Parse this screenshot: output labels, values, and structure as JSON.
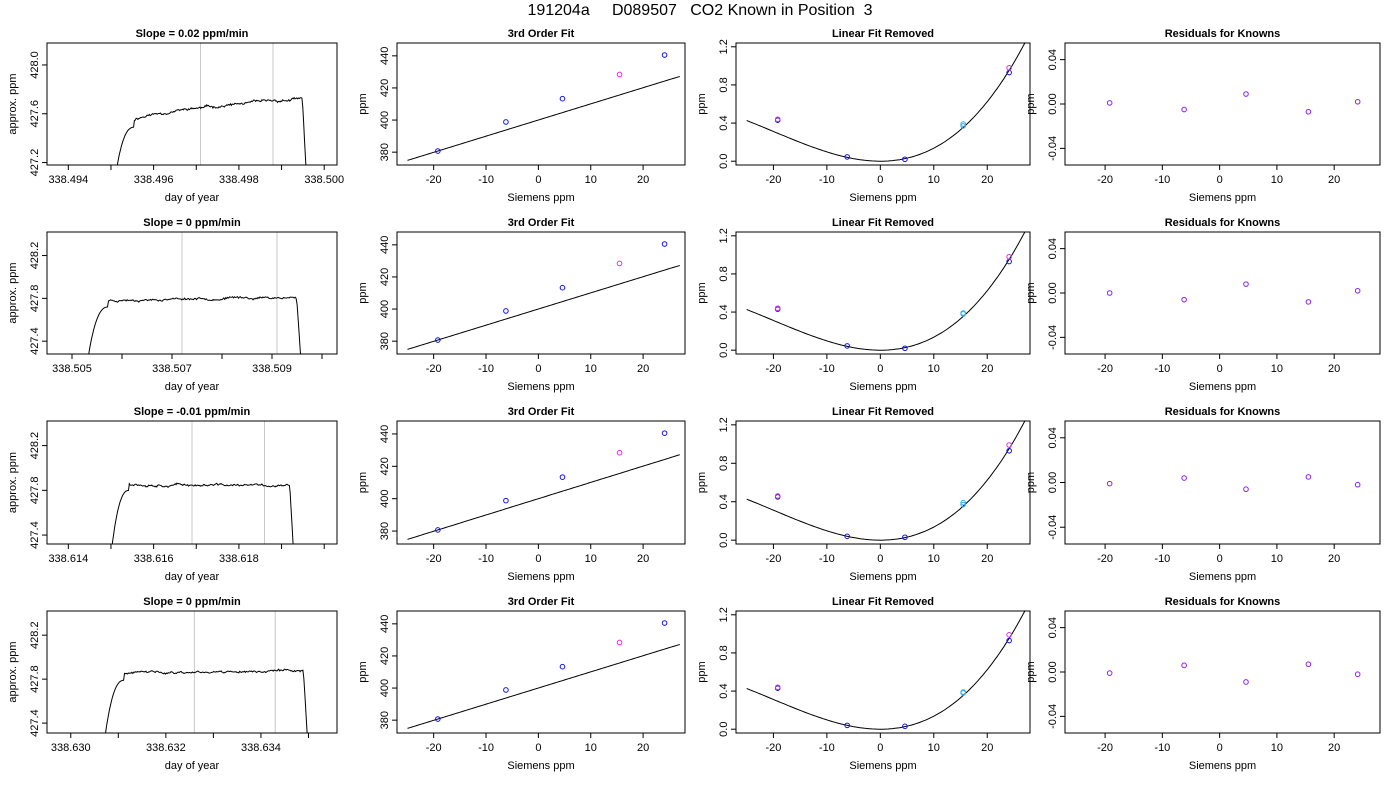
{
  "page": {
    "title": "191204a     D089507   CO2 Known in Position  3"
  },
  "colors": {
    "axis": "#000000",
    "line": "#000000",
    "vline": "#c8c8c8",
    "blue": "#1414e6",
    "magenta": "#dd33dd",
    "cyan": "#33aaee",
    "purple": "#8822ee"
  },
  "chart_data": [
    {
      "type": "line",
      "row": 0,
      "col": 0,
      "title": "Slope =  0.02  ppm/min",
      "xlabel": "day of year",
      "ylabel": "approx. ppm",
      "xlim": [
        338.4935,
        338.5003
      ],
      "ylim": [
        427.18,
        428.18
      ],
      "xticks": [
        338.494,
        338.495,
        338.496,
        338.497,
        338.498,
        338.499,
        338.5
      ],
      "xtick_labels": [
        "338.494",
        "",
        "338.496",
        "",
        "338.498",
        "",
        "338.500"
      ],
      "yticks": [
        427.2,
        427.6,
        428.0
      ],
      "ytick_labels": [
        "427.2",
        "427.6",
        "428.0"
      ],
      "vlines": [
        338.4971,
        338.4988
      ],
      "trace": {
        "x0": 338.4951,
        "x1": 338.4996,
        "plateau": 427.55,
        "end": 427.72,
        "noise": 0.012,
        "seed": 11
      }
    },
    {
      "type": "line",
      "row": 1,
      "col": 0,
      "title": "Slope =  0  ppm/min",
      "xlabel": "day of year",
      "ylabel": "approx. ppm",
      "xlim": [
        338.5045,
        338.5103
      ],
      "ylim": [
        427.28,
        428.42
      ],
      "xticks": [
        338.505,
        338.506,
        338.507,
        338.508,
        338.509,
        338.51
      ],
      "xtick_labels": [
        "338.505",
        "",
        "338.507",
        "",
        "338.509",
        ""
      ],
      "yticks": [
        427.4,
        427.8,
        428.2
      ],
      "ytick_labels": [
        "427.4",
        "427.8",
        "428.2"
      ],
      "vlines": [
        338.5072,
        338.5091
      ],
      "trace": {
        "x0": 338.5053,
        "x1": 338.5096,
        "plateau": 427.78,
        "end": 427.81,
        "noise": 0.012,
        "seed": 23
      }
    },
    {
      "type": "line",
      "row": 2,
      "col": 0,
      "title": "Slope =  -0.01  ppm/min",
      "xlabel": "day of year",
      "ylabel": "approx. ppm",
      "xlim": [
        338.6135,
        338.6203
      ],
      "ylim": [
        427.32,
        428.42
      ],
      "xticks": [
        338.614,
        338.615,
        338.616,
        338.617,
        338.618,
        338.619,
        338.62
      ],
      "xtick_labels": [
        "338.614",
        "",
        "338.616",
        "",
        "338.618",
        "",
        ""
      ],
      "yticks": [
        427.4,
        427.8,
        428.2
      ],
      "ytick_labels": [
        "427.4",
        "427.8",
        "428.2"
      ],
      "vlines": [
        338.6169,
        338.6186
      ],
      "trace": {
        "x0": 338.615,
        "x1": 338.6193,
        "plateau": 427.86,
        "end": 427.84,
        "noise": 0.012,
        "seed": 37
      }
    },
    {
      "type": "line",
      "row": 3,
      "col": 0,
      "title": "Slope =  0  ppm/min",
      "xlabel": "day of year",
      "ylabel": "approx. ppm",
      "xlim": [
        338.6295,
        338.6356
      ],
      "ylim": [
        427.31,
        428.42
      ],
      "xticks": [
        338.63,
        338.631,
        338.632,
        338.633,
        338.634,
        338.635
      ],
      "xtick_labels": [
        "338.630",
        "",
        "338.632",
        "",
        "338.634",
        ""
      ],
      "yticks": [
        427.4,
        427.8,
        428.2
      ],
      "ytick_labels": [
        "427.4",
        "427.8",
        "428.2"
      ],
      "vlines": [
        338.6326,
        338.6343
      ],
      "trace": {
        "x0": 338.6307,
        "x1": 338.635,
        "plateau": 427.85,
        "end": 427.88,
        "noise": 0.012,
        "seed": 41
      }
    },
    {
      "type": "scatter",
      "row": 0,
      "col": 1,
      "title": "3rd Order Fit",
      "xlabel": "Siemens ppm",
      "ylabel": "ppm",
      "xlim": [
        -27,
        28
      ],
      "ylim": [
        372,
        448
      ],
      "xticks": [
        -20,
        -10,
        0,
        10,
        20
      ],
      "yticks": [
        380,
        400,
        420,
        440
      ],
      "fit": {
        "kind": "linear",
        "slope": 1.006,
        "intercept": 400.0
      },
      "points": [
        [
          -19.2,
          380.7,
          "blue"
        ],
        [
          -6.2,
          398.8,
          "blue"
        ],
        [
          4.6,
          413.3,
          "blue"
        ],
        [
          15.5,
          428.4,
          "magenta"
        ],
        [
          24.1,
          440.5,
          "blue"
        ]
      ]
    },
    {
      "type": "scatter",
      "row": 1,
      "col": 1,
      "title": "3rd Order Fit",
      "xlabel": "Siemens ppm",
      "ylabel": "ppm",
      "xlim": [
        -27,
        28
      ],
      "ylim": [
        372,
        448
      ],
      "xticks": [
        -20,
        -10,
        0,
        10,
        20
      ],
      "yticks": [
        380,
        400,
        420,
        440
      ],
      "fit": {
        "kind": "linear",
        "slope": 1.006,
        "intercept": 400.0
      },
      "points": [
        [
          -19.2,
          380.7,
          "blue"
        ],
        [
          -6.2,
          398.8,
          "blue"
        ],
        [
          4.6,
          413.3,
          "blue"
        ],
        [
          15.5,
          428.4,
          "magenta"
        ],
        [
          24.1,
          440.5,
          "blue"
        ]
      ]
    },
    {
      "type": "scatter",
      "row": 2,
      "col": 1,
      "title": "3rd Order Fit",
      "xlabel": "Siemens ppm",
      "ylabel": "ppm",
      "xlim": [
        -27,
        28
      ],
      "ylim": [
        372,
        448
      ],
      "xticks": [
        -20,
        -10,
        0,
        10,
        20
      ],
      "yticks": [
        380,
        400,
        420,
        440
      ],
      "fit": {
        "kind": "linear",
        "slope": 1.006,
        "intercept": 400.0
      },
      "points": [
        [
          -19.2,
          380.7,
          "blue"
        ],
        [
          -6.2,
          398.8,
          "blue"
        ],
        [
          4.6,
          413.3,
          "blue"
        ],
        [
          15.5,
          428.4,
          "magenta"
        ],
        [
          24.1,
          440.5,
          "blue"
        ]
      ]
    },
    {
      "type": "scatter",
      "row": 3,
      "col": 1,
      "title": "3rd Order Fit",
      "xlabel": "Siemens ppm",
      "ylabel": "ppm",
      "xlim": [
        -27,
        28
      ],
      "ylim": [
        372,
        448
      ],
      "xticks": [
        -20,
        -10,
        0,
        10,
        20
      ],
      "yticks": [
        380,
        400,
        420,
        440
      ],
      "fit": {
        "kind": "linear",
        "slope": 1.006,
        "intercept": 400.0
      },
      "points": [
        [
          -19.2,
          380.7,
          "blue"
        ],
        [
          -6.2,
          398.8,
          "blue"
        ],
        [
          4.6,
          413.3,
          "blue"
        ],
        [
          15.5,
          428.4,
          "magenta"
        ],
        [
          24.1,
          440.5,
          "blue"
        ]
      ]
    },
    {
      "type": "scatter",
      "row": 0,
      "col": 2,
      "title": "Linear Fit Removed",
      "xlabel": "Siemens ppm",
      "ylabel": "ppm",
      "xlim": [
        -27,
        28
      ],
      "ylim": [
        -0.04,
        1.24
      ],
      "xticks": [
        -20,
        -10,
        0,
        10,
        20
      ],
      "yticks": [
        0.0,
        0.4,
        0.8,
        1.2
      ],
      "ytick_labels": [
        "0.0",
        "0.4",
        "0.8",
        "1.2"
      ],
      "fit": {
        "kind": "poly3",
        "c2": 0.00117,
        "c3": 1.95e-05
      },
      "points": [
        [
          -19.2,
          0.43,
          "blue"
        ],
        [
          -19.2,
          0.44,
          "magenta"
        ],
        [
          -6.2,
          0.045,
          "blue"
        ],
        [
          4.6,
          0.02,
          "blue"
        ],
        [
          15.5,
          0.37,
          "cyan"
        ],
        [
          15.5,
          0.39,
          "cyan"
        ],
        [
          24.1,
          0.93,
          "blue"
        ],
        [
          24.1,
          0.98,
          "magenta"
        ]
      ]
    },
    {
      "type": "scatter",
      "row": 1,
      "col": 2,
      "title": "Linear Fit Removed",
      "xlabel": "Siemens ppm",
      "ylabel": "ppm",
      "xlim": [
        -27,
        28
      ],
      "ylim": [
        -0.04,
        1.24
      ],
      "xticks": [
        -20,
        -10,
        0,
        10,
        20
      ],
      "yticks": [
        0.0,
        0.4,
        0.8,
        1.2
      ],
      "ytick_labels": [
        "0.0",
        "0.4",
        "0.8",
        "1.2"
      ],
      "fit": {
        "kind": "poly3",
        "c2": 0.00117,
        "c3": 1.95e-05
      },
      "points": [
        [
          -19.2,
          0.43,
          "blue"
        ],
        [
          -19.2,
          0.44,
          "magenta"
        ],
        [
          -6.2,
          0.045,
          "blue"
        ],
        [
          4.6,
          0.02,
          "blue"
        ],
        [
          15.5,
          0.38,
          "cyan"
        ],
        [
          15.5,
          0.39,
          "cyan"
        ],
        [
          24.1,
          0.93,
          "blue"
        ],
        [
          24.1,
          0.98,
          "magenta"
        ]
      ]
    },
    {
      "type": "scatter",
      "row": 2,
      "col": 2,
      "title": "Linear Fit Removed",
      "xlabel": "Siemens ppm",
      "ylabel": "ppm",
      "xlim": [
        -27,
        28
      ],
      "ylim": [
        -0.04,
        1.24
      ],
      "xticks": [
        -20,
        -10,
        0,
        10,
        20
      ],
      "yticks": [
        0.0,
        0.4,
        0.8,
        1.2
      ],
      "ytick_labels": [
        "0.0",
        "0.4",
        "0.8",
        "1.2"
      ],
      "fit": {
        "kind": "poly3",
        "c2": 0.00117,
        "c3": 1.95e-05
      },
      "points": [
        [
          -19.2,
          0.45,
          "blue"
        ],
        [
          -19.2,
          0.46,
          "magenta"
        ],
        [
          -6.2,
          0.04,
          "blue"
        ],
        [
          4.6,
          0.03,
          "blue"
        ],
        [
          15.5,
          0.37,
          "cyan"
        ],
        [
          15.5,
          0.39,
          "cyan"
        ],
        [
          24.1,
          0.93,
          "blue"
        ],
        [
          24.1,
          0.99,
          "magenta"
        ]
      ]
    },
    {
      "type": "scatter",
      "row": 3,
      "col": 2,
      "title": "Linear Fit Removed",
      "xlabel": "Siemens ppm",
      "ylabel": "ppm",
      "xlim": [
        -27,
        28
      ],
      "ylim": [
        -0.04,
        1.24
      ],
      "xticks": [
        -20,
        -10,
        0,
        10,
        20
      ],
      "yticks": [
        0.0,
        0.4,
        0.8,
        1.2
      ],
      "ytick_labels": [
        "0.0",
        "0.4",
        "0.8",
        "1.2"
      ],
      "fit": {
        "kind": "poly3",
        "c2": 0.00117,
        "c3": 1.95e-05
      },
      "points": [
        [
          -19.2,
          0.43,
          "blue"
        ],
        [
          -19.2,
          0.44,
          "magenta"
        ],
        [
          -6.2,
          0.04,
          "blue"
        ],
        [
          4.6,
          0.03,
          "blue"
        ],
        [
          15.5,
          0.38,
          "cyan"
        ],
        [
          15.5,
          0.39,
          "cyan"
        ],
        [
          24.1,
          0.93,
          "blue"
        ],
        [
          24.1,
          0.99,
          "magenta"
        ]
      ]
    },
    {
      "type": "scatter",
      "row": 0,
      "col": 3,
      "title": "Residuals for Knowns",
      "xlabel": "Siemens ppm",
      "ylabel": "ppm",
      "xlim": [
        -27,
        28
      ],
      "ylim": [
        -0.055,
        0.055
      ],
      "xticks": [
        -20,
        -10,
        0,
        10,
        20
      ],
      "yticks": [
        -0.04,
        0.0,
        0.04
      ],
      "ytick_labels": [
        "-0.04",
        "0.00",
        "0.04"
      ],
      "points": [
        [
          -19.2,
          0.001,
          "purple"
        ],
        [
          -6.2,
          -0.005,
          "purple"
        ],
        [
          4.6,
          0.009,
          "purple"
        ],
        [
          15.5,
          -0.007,
          "purple"
        ],
        [
          24.1,
          0.002,
          "purple"
        ]
      ]
    },
    {
      "type": "scatter",
      "row": 1,
      "col": 3,
      "title": "Residuals for Knowns",
      "xlabel": "Siemens ppm",
      "ylabel": "ppm",
      "xlim": [
        -27,
        28
      ],
      "ylim": [
        -0.055,
        0.055
      ],
      "xticks": [
        -20,
        -10,
        0,
        10,
        20
      ],
      "yticks": [
        -0.04,
        0.0,
        0.04
      ],
      "ytick_labels": [
        "-0.04",
        "0.00",
        "0.04"
      ],
      "points": [
        [
          -19.2,
          0.0,
          "purple"
        ],
        [
          -6.2,
          -0.006,
          "purple"
        ],
        [
          4.6,
          0.008,
          "purple"
        ],
        [
          15.5,
          -0.008,
          "purple"
        ],
        [
          24.1,
          0.002,
          "purple"
        ]
      ]
    },
    {
      "type": "scatter",
      "row": 2,
      "col": 3,
      "title": "Residuals for Knowns",
      "xlabel": "Siemens ppm",
      "ylabel": "ppm",
      "xlim": [
        -27,
        28
      ],
      "ylim": [
        -0.055,
        0.055
      ],
      "xticks": [
        -20,
        -10,
        0,
        10,
        20
      ],
      "yticks": [
        -0.04,
        0.0,
        0.04
      ],
      "ytick_labels": [
        "-0.04",
        "0.00",
        "0.04"
      ],
      "points": [
        [
          -19.2,
          -0.001,
          "purple"
        ],
        [
          -6.2,
          0.004,
          "purple"
        ],
        [
          4.6,
          -0.006,
          "purple"
        ],
        [
          15.5,
          0.005,
          "purple"
        ],
        [
          24.1,
          -0.002,
          "purple"
        ]
      ]
    },
    {
      "type": "scatter",
      "row": 3,
      "col": 3,
      "title": "Residuals for Knowns",
      "xlabel": "Siemens ppm",
      "ylabel": "ppm",
      "xlim": [
        -27,
        28
      ],
      "ylim": [
        -0.055,
        0.055
      ],
      "xticks": [
        -20,
        -10,
        0,
        10,
        20
      ],
      "yticks": [
        -0.04,
        0.0,
        0.04
      ],
      "ytick_labels": [
        "-0.04",
        "0.00",
        "0.04"
      ],
      "points": [
        [
          -19.2,
          -0.001,
          "purple"
        ],
        [
          -6.2,
          0.006,
          "purple"
        ],
        [
          4.6,
          -0.009,
          "purple"
        ],
        [
          15.5,
          0.007,
          "purple"
        ],
        [
          24.1,
          -0.002,
          "purple"
        ]
      ]
    }
  ]
}
